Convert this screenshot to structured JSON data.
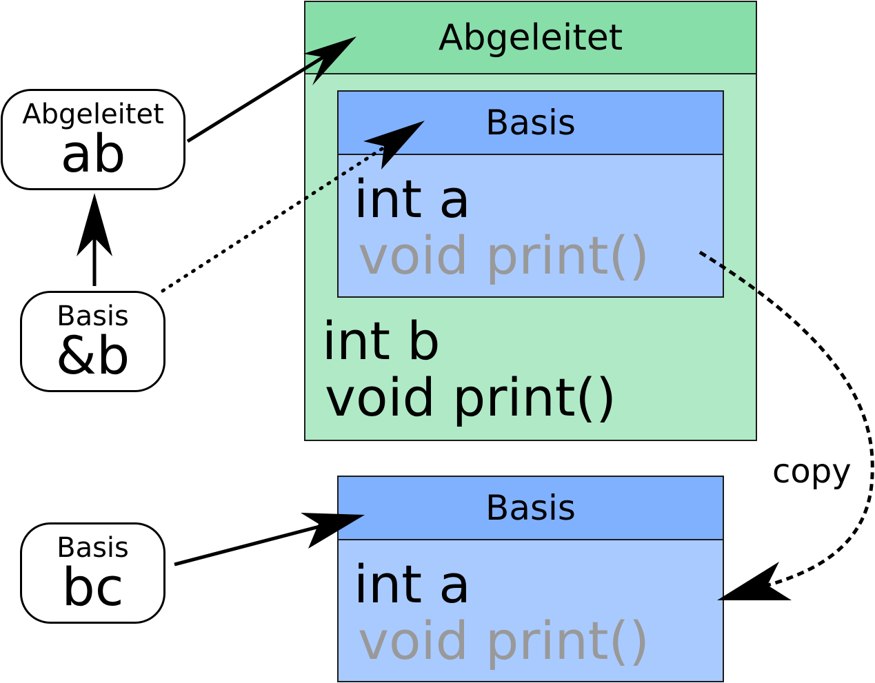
{
  "derived": {
    "title": "Abgeleitet",
    "base": {
      "title": "Basis",
      "member_a": "int a",
      "member_print": "void print()"
    },
    "member_b": "int b",
    "member_print": "void print()"
  },
  "copied_base": {
    "title": "Basis",
    "member_a": "int a",
    "member_print": "void print()"
  },
  "variables": {
    "ab": {
      "type": "Abgeleitet",
      "name": "ab"
    },
    "b_ref": {
      "type": "Basis",
      "name": "&b"
    },
    "bc": {
      "type": "Basis",
      "name": "bc"
    }
  },
  "copy_label": "copy",
  "colors": {
    "derived_header": "#88dea9",
    "derived_body": "#b0e9c6",
    "base_header": "#80b1ff",
    "base_body": "#a9caff",
    "inactive_member": "#999999"
  }
}
